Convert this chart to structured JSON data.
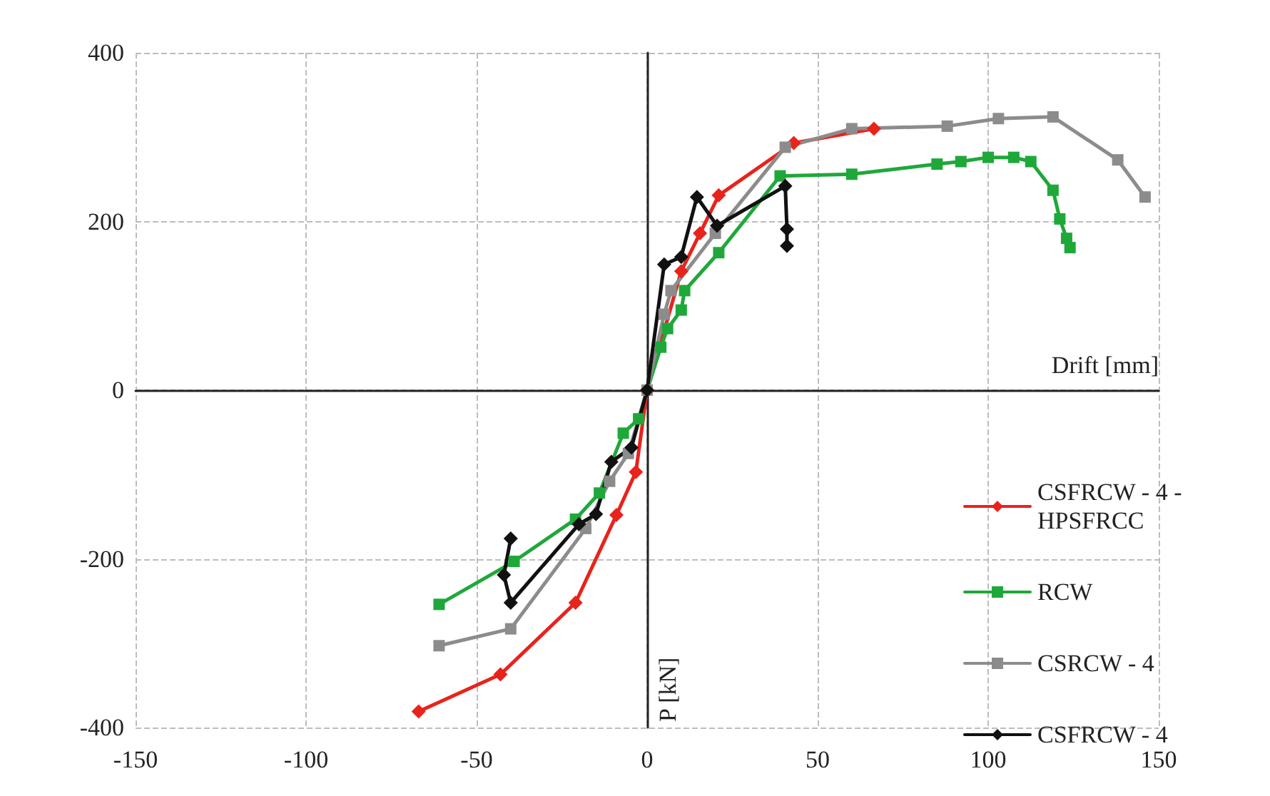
{
  "chart_data": {
    "type": "line",
    "xlabel": "Drift [mm]",
    "ylabel": "P [kN]",
    "xlim": [
      -150,
      150
    ],
    "xticks": [
      -150,
      -100,
      -50,
      0,
      50,
      100,
      150
    ],
    "ylim": [
      -400,
      400
    ],
    "yticks": [
      -400,
      -200,
      0,
      200,
      400
    ],
    "grid": true,
    "legend": "right",
    "line_style": "solid",
    "series": [
      {
        "name": "CSFRCW - 4 - HPSFRCC",
        "color": "#e8231c",
        "marker": "diamond",
        "x": [
          -67,
          -43,
          -21,
          -9,
          -3.3,
          0,
          10,
          15.5,
          21,
          43,
          66.5
        ],
        "values": [
          -381,
          -337,
          -252,
          -148,
          -97,
          0,
          141,
          186,
          231,
          293,
          310
        ]
      },
      {
        "name": "RCW",
        "color": "#1fa83a",
        "marker": "square",
        "x": [
          -61,
          -39,
          -21,
          -14,
          -7,
          -2.5,
          0,
          4,
          6,
          10,
          11,
          21,
          39,
          60,
          85,
          92,
          100,
          107.5,
          112.5,
          119,
          121,
          123,
          124
        ],
        "values": [
          -254,
          -203,
          -153,
          -122,
          -51,
          -34,
          0,
          51,
          73,
          95,
          118,
          163,
          254,
          256,
          268,
          271,
          276,
          276,
          271,
          237,
          203,
          180,
          169
        ]
      },
      {
        "name": "CSRCW - 4",
        "color": "#8c8c8c",
        "marker": "square",
        "x": [
          -61,
          -40,
          -18,
          -11,
          -5.5,
          0,
          5,
          7,
          20,
          40.5,
          60,
          88,
          103,
          119,
          138,
          146
        ],
        "values": [
          -303,
          -283,
          -164,
          -108,
          -75,
          0,
          90,
          118,
          186,
          288,
          310,
          313,
          322,
          324,
          273,
          229
        ]
      },
      {
        "name": "CSFRCW - 4",
        "color": "#111111",
        "marker": "diamond",
        "x": [
          -40,
          -42,
          -40,
          -20,
          -15,
          -10.5,
          -4.6,
          0,
          5,
          10,
          14.6,
          20.5,
          40.5,
          41,
          41
        ],
        "values": [
          -176,
          -219,
          -252,
          -159,
          -147,
          -85,
          -68,
          0,
          149,
          158,
          229,
          195,
          242,
          191,
          171
        ]
      }
    ]
  }
}
